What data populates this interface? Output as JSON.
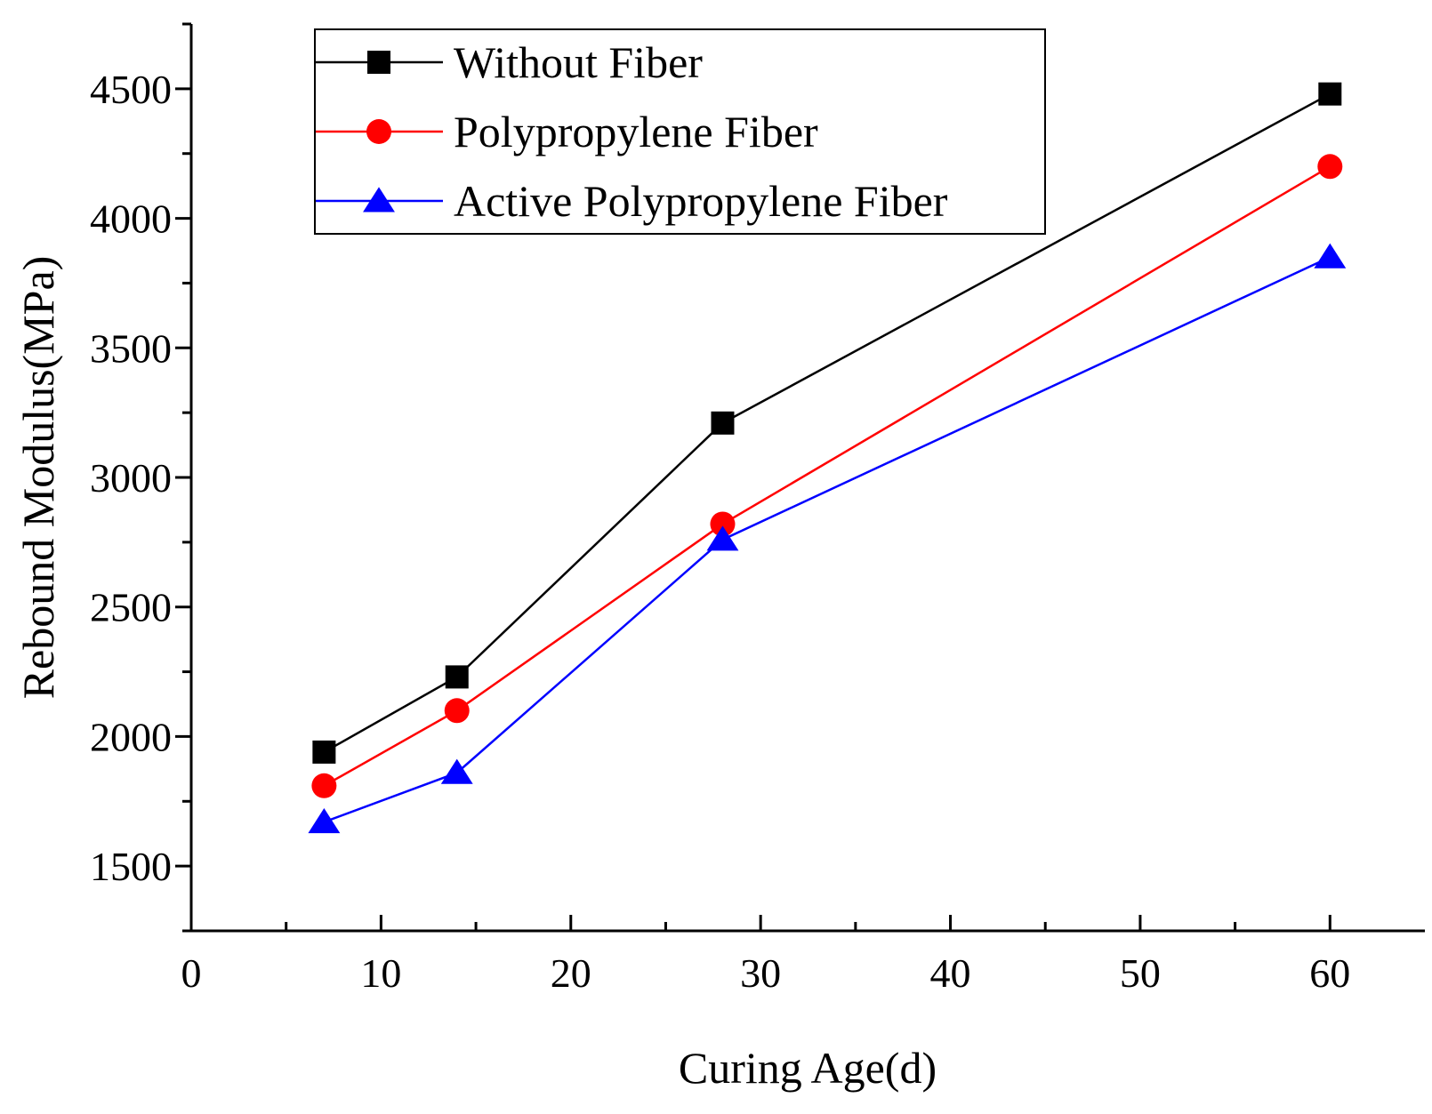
{
  "chart_data": {
    "type": "line",
    "title": "",
    "xlabel": "Curing Age(d)",
    "ylabel": "Rebound Modulus(MPa)",
    "xlim": [
      0,
      65
    ],
    "ylim": [
      1250,
      4750
    ],
    "xticks": [
      0,
      10,
      20,
      30,
      40,
      50,
      60
    ],
    "yticks": [
      1500,
      2000,
      2500,
      3000,
      3500,
      4000,
      4500
    ],
    "grid": false,
    "legend_position": "top-left",
    "series": [
      {
        "name": "Without Fiber",
        "color": "#000000",
        "marker": "square",
        "x": [
          7,
          14,
          28,
          60
        ],
        "y": [
          1940,
          2230,
          3210,
          4480
        ]
      },
      {
        "name": "Polypropylene Fiber",
        "color": "#ff0000",
        "marker": "circle",
        "x": [
          7,
          14,
          28,
          60
        ],
        "y": [
          1810,
          2100,
          2820,
          4200
        ]
      },
      {
        "name": "Active Polypropylene Fiber",
        "color": "#0000ff",
        "marker": "triangle",
        "x": [
          7,
          14,
          28,
          60
        ],
        "y": [
          1670,
          1860,
          2760,
          3850
        ]
      }
    ]
  }
}
